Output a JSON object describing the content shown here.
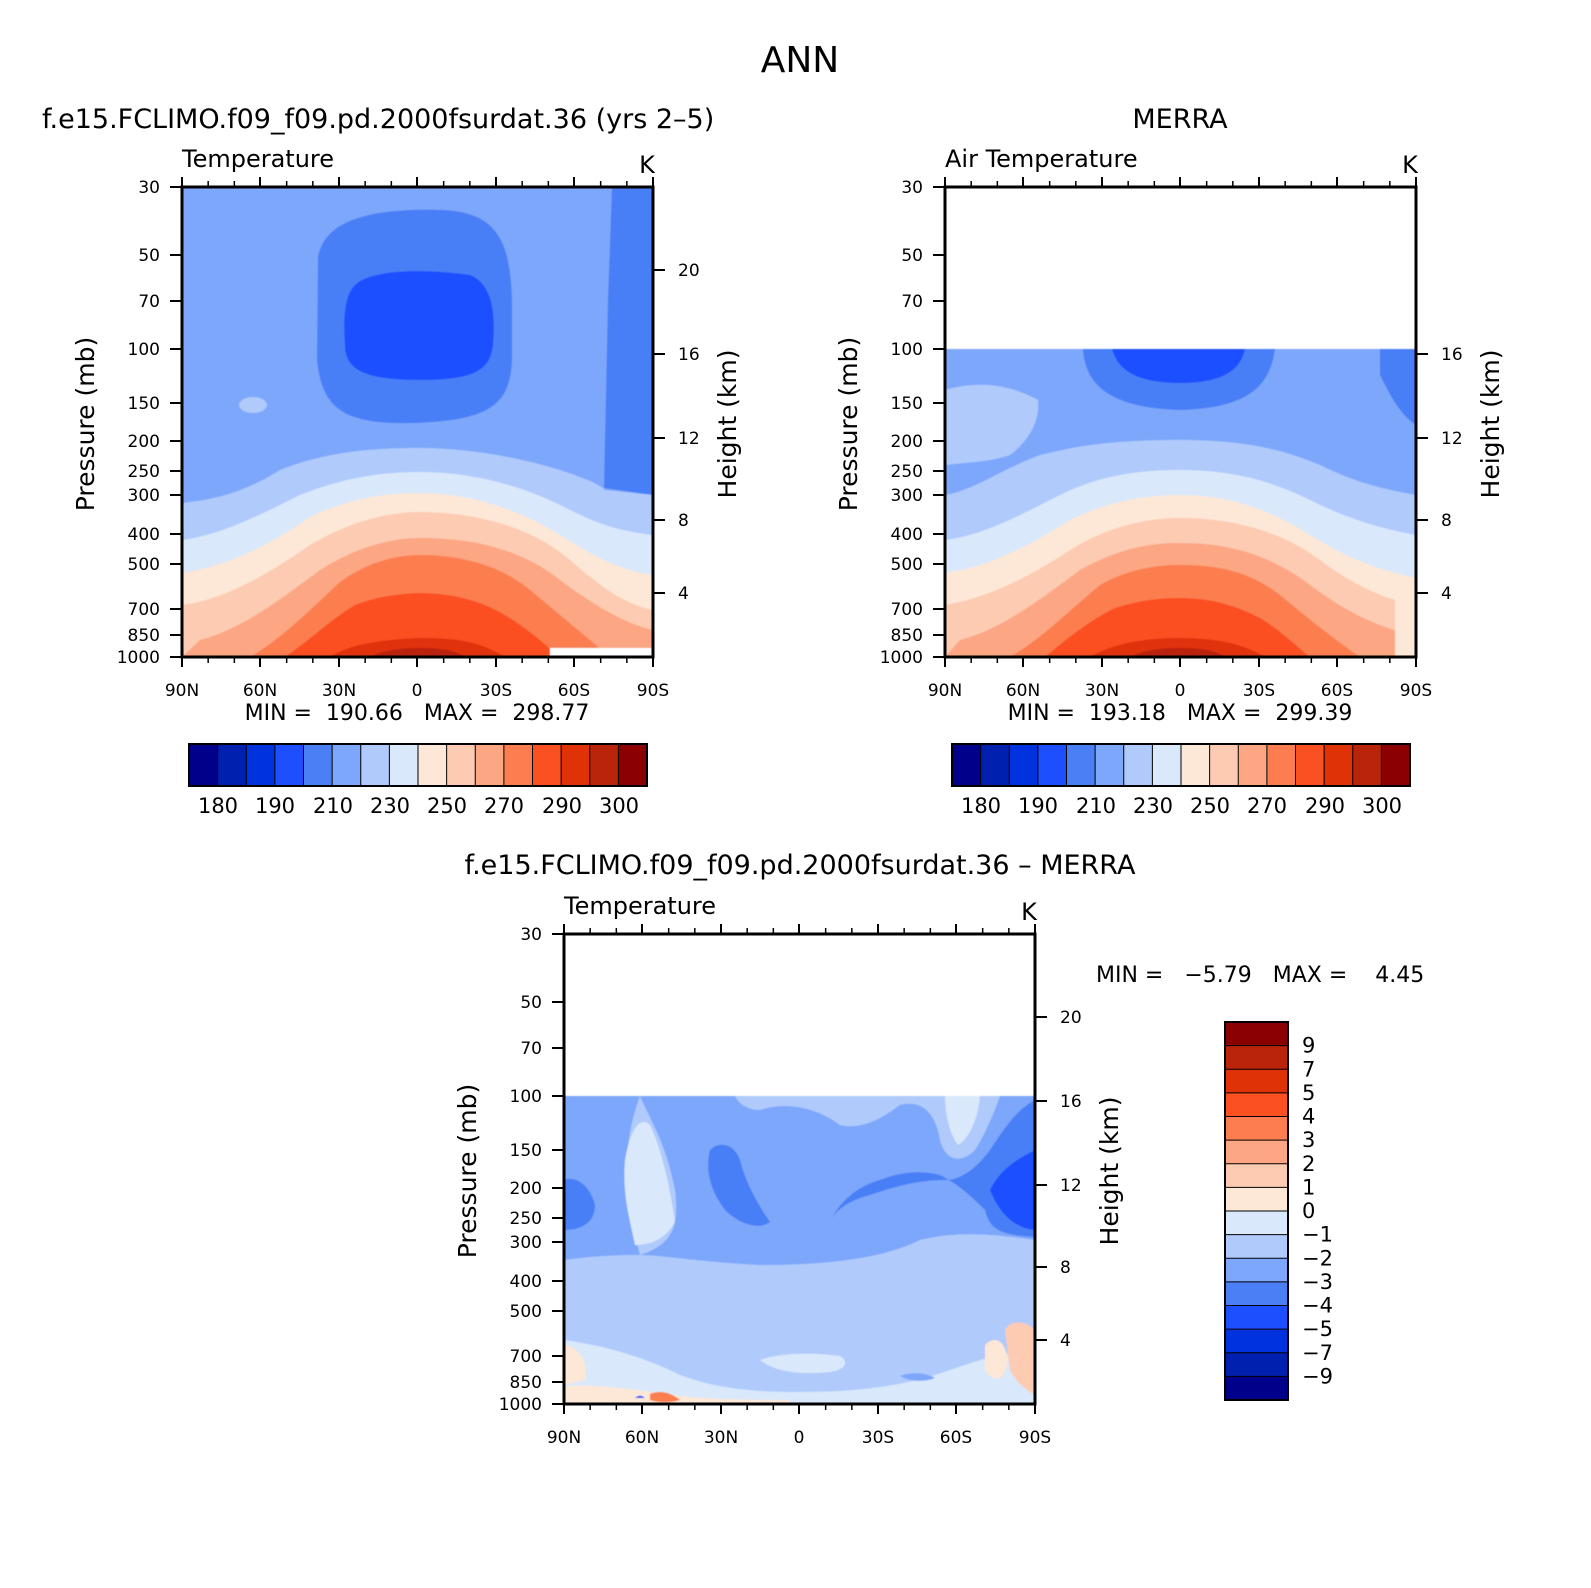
{
  "page": {
    "title": "ANN"
  },
  "panels": [
    {
      "header": "f.e15.FCLIMO.f09_f09.pd.2000fsurdat.36 (yrs 2–5)",
      "variable": "Temperature",
      "units": "K",
      "minmax": "MIN =  190.66   MAX =  298.77"
    },
    {
      "header": "MERRA",
      "variable": "Air Temperature",
      "units": "K",
      "minmax": "MIN =  193.18   MAX =  299.39"
    },
    {
      "header": "f.e15.FCLIMO.f09_f09.pd.2000fsurdat.36 – MERRA",
      "variable": "Temperature",
      "units": "K",
      "minmax": "MIN =   −5.79   MAX =    4.45"
    }
  ],
  "colors": {
    "abs_scale": [
      "#00008b",
      "#0020b0",
      "#0033dd",
      "#1e4fff",
      "#4a7ff6",
      "#7da7fb",
      "#b0cafc",
      "#d9e8fb",
      "#fde8d7",
      "#fdcbb2",
      "#fca683",
      "#fc7e50",
      "#fb5021",
      "#e03207",
      "#b9240b",
      "#8b0000"
    ],
    "diff_scale": [
      "#00008b",
      "#0020b0",
      "#0033dd",
      "#1e4fff",
      "#4a7ff6",
      "#7da7fb",
      "#b0cafc",
      "#d9e8fb",
      "#fde8d7",
      "#fdcbb2",
      "#fca683",
      "#fc7e50",
      "#fb5021",
      "#e03207",
      "#b9240b",
      "#8b0000"
    ]
  },
  "chart_data": [
    {
      "type": "heatmap",
      "title": "f.e15.FCLIMO.f09_f09.pd.2000fsurdat.36 (yrs 2–5)",
      "subtitle": "Temperature",
      "units": "K",
      "xlabel": "",
      "ylabel": "Pressure (mb)",
      "y2label": "Height (km)",
      "x_ticks": [
        "90N",
        "60N",
        "30N",
        "0",
        "30S",
        "60S",
        "90S"
      ],
      "y_ticks": [
        "30",
        "50",
        "70",
        "100",
        "150",
        "200",
        "250",
        "300",
        "400",
        "500",
        "700",
        "850",
        "1000"
      ],
      "y2_ticks": [
        "4",
        "8",
        "12",
        "16",
        "20"
      ],
      "min": 190.66,
      "max": 298.77,
      "colorbar_labels": [
        "180",
        "190",
        "210",
        "230",
        "250",
        "270",
        "290",
        "300"
      ],
      "colorbar_levels": [
        180,
        185,
        190,
        200,
        210,
        220,
        230,
        240,
        250,
        260,
        270,
        280,
        290,
        295,
        300
      ]
    },
    {
      "type": "heatmap",
      "title": "MERRA",
      "subtitle": "Air Temperature",
      "units": "K",
      "xlabel": "",
      "ylabel": "Pressure (mb)",
      "y2label": "Height (km)",
      "x_ticks": [
        "90N",
        "60N",
        "30N",
        "0",
        "30S",
        "60S",
        "90S"
      ],
      "y_ticks": [
        "30",
        "50",
        "70",
        "100",
        "150",
        "200",
        "250",
        "300",
        "400",
        "500",
        "700",
        "850",
        "1000"
      ],
      "y2_ticks": [
        "4",
        "8",
        "12",
        "16"
      ],
      "min": 193.18,
      "max": 299.39,
      "colorbar_labels": [
        "180",
        "190",
        "210",
        "230",
        "250",
        "270",
        "290",
        "300"
      ],
      "colorbar_levels": [
        180,
        185,
        190,
        200,
        210,
        220,
        230,
        240,
        250,
        260,
        270,
        280,
        290,
        295,
        300
      ]
    },
    {
      "type": "heatmap",
      "title": "f.e15.FCLIMO.f09_f09.pd.2000fsurdat.36 – MERRA",
      "subtitle": "Temperature",
      "units": "K",
      "xlabel": "",
      "ylabel": "Pressure (mb)",
      "y2label": "Height (km)",
      "x_ticks": [
        "90N",
        "60N",
        "30N",
        "0",
        "30S",
        "60S",
        "90S"
      ],
      "y_ticks": [
        "30",
        "50",
        "70",
        "100",
        "150",
        "200",
        "250",
        "300",
        "400",
        "500",
        "700",
        "850",
        "1000"
      ],
      "y2_ticks": [
        "4",
        "8",
        "12",
        "16",
        "20"
      ],
      "min": -5.79,
      "max": 4.45,
      "colorbar_labels": [
        "9",
        "7",
        "5",
        "4",
        "3",
        "2",
        "1",
        "0",
        "−1",
        "−2",
        "−3",
        "−4",
        "−5",
        "−7",
        "−9"
      ],
      "colorbar_levels": [
        9,
        7,
        5,
        4,
        3,
        2,
        1,
        0,
        -1,
        -2,
        -3,
        -4,
        -5,
        -7,
        -9
      ]
    }
  ]
}
